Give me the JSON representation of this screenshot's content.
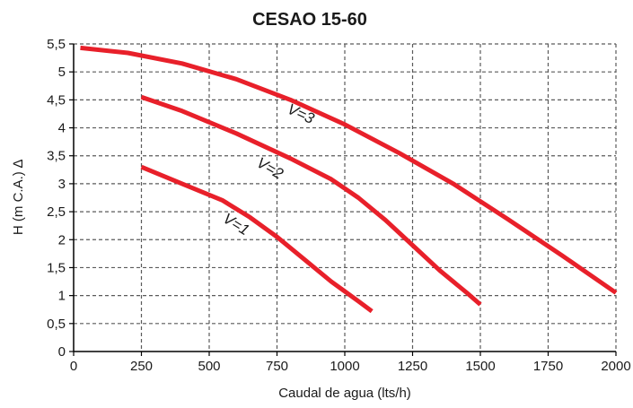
{
  "chart_data": {
    "type": "line",
    "title": "CESAO 15-60",
    "xlabel": "Caudal de agua (lts/h)",
    "ylabel": "H (m C.A.) ∆",
    "xlim": [
      0,
      2000
    ],
    "ylim": [
      0,
      5.5
    ],
    "x_ticks": [
      0,
      250,
      500,
      750,
      1000,
      1250,
      1500,
      1750,
      2000
    ],
    "x_tick_labels": [
      "0",
      "250",
      "500",
      "750",
      "1000",
      "1250",
      "1500",
      "1750",
      "2000"
    ],
    "y_ticks": [
      0,
      0.5,
      1,
      1.5,
      2,
      2.5,
      3,
      3.5,
      4,
      4.5,
      5,
      5.5
    ],
    "y_tick_labels": [
      "0",
      "0,5",
      "1",
      "1,5",
      "2",
      "2,5",
      "3",
      "3,5",
      "4",
      "4,5",
      "5",
      "5,5"
    ],
    "grid": true,
    "grid_style": "dashed",
    "legend": "none",
    "series_color": "#e8202a",
    "series": [
      {
        "name": "V=3",
        "x": [
          25,
          200,
          400,
          600,
          800,
          1000,
          1200,
          1400,
          1600,
          1800,
          2000
        ],
        "y": [
          5.43,
          5.34,
          5.15,
          4.87,
          4.5,
          4.06,
          3.55,
          3.0,
          2.37,
          1.72,
          1.05
        ]
      },
      {
        "name": "V=2",
        "x": [
          250,
          400,
          600,
          800,
          950,
          1050,
          1150,
          1250,
          1350,
          1450,
          1500
        ],
        "y": [
          4.55,
          4.3,
          3.9,
          3.45,
          3.08,
          2.75,
          2.35,
          1.9,
          1.45,
          1.05,
          0.84
        ]
      },
      {
        "name": "V=1",
        "x": [
          250,
          400,
          550,
          650,
          750,
          850,
          950,
          1050,
          1100
        ],
        "y": [
          3.3,
          3.0,
          2.7,
          2.4,
          2.05,
          1.65,
          1.25,
          0.9,
          0.72
        ]
      }
    ]
  }
}
